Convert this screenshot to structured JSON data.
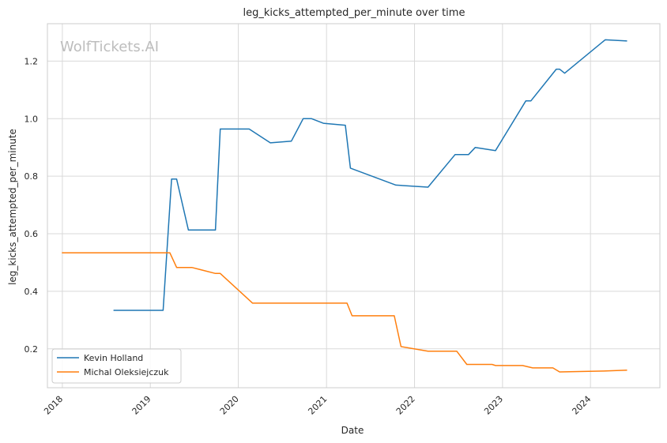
{
  "watermark": "WolfTickets.AI",
  "chart_data": {
    "type": "line",
    "title": "leg_kicks_attempted_per_minute over time",
    "xlabel": "Date",
    "ylabel": "leg_kicks_attempted_per_minute",
    "x_ticks": [
      "2018",
      "2019",
      "2020",
      "2021",
      "2022",
      "2023",
      "2024"
    ],
    "y_ticks": [
      "0.2",
      "0.4",
      "0.6",
      "0.8",
      "1.0",
      "1.2"
    ],
    "xlim": [
      "2017-10-31",
      "2024-10-15"
    ],
    "ylim": [
      0.065,
      1.33
    ],
    "grid": true,
    "legend_position": "lower-left",
    "colors": {
      "Kevin Holland": "#1f77b4",
      "Michal Oleksiejczuk": "#ff7f0e"
    },
    "series": [
      {
        "name": "Kevin Holland",
        "points": [
          [
            "2018-08-01",
            0.334
          ],
          [
            "2019-02-23",
            0.334
          ],
          [
            "2019-03-30",
            0.79
          ],
          [
            "2019-04-20",
            0.79
          ],
          [
            "2019-06-08",
            0.613
          ],
          [
            "2019-09-28",
            0.613
          ],
          [
            "2019-10-18",
            0.964
          ],
          [
            "2020-02-15",
            0.964
          ],
          [
            "2020-05-13",
            0.916
          ],
          [
            "2020-08-08",
            0.922
          ],
          [
            "2020-09-26",
            1.0
          ],
          [
            "2020-10-31",
            1.0
          ],
          [
            "2020-12-19",
            0.984
          ],
          [
            "2021-03-20",
            0.977
          ],
          [
            "2021-04-10",
            0.828
          ],
          [
            "2021-10-16",
            0.769
          ],
          [
            "2022-02-26",
            0.762
          ],
          [
            "2022-06-18",
            0.875
          ],
          [
            "2022-08-13",
            0.875
          ],
          [
            "2022-09-10",
            0.9
          ],
          [
            "2022-12-03",
            0.889
          ],
          [
            "2023-04-08",
            1.062
          ],
          [
            "2023-04-29",
            1.062
          ],
          [
            "2023-08-12",
            1.172
          ],
          [
            "2023-08-26",
            1.172
          ],
          [
            "2023-09-16",
            1.158
          ],
          [
            "2024-03-02",
            1.274
          ],
          [
            "2024-06-01",
            1.27
          ]
        ]
      },
      {
        "name": "Michal Oleksiejczuk",
        "points": [
          [
            "2017-12-30",
            0.534
          ],
          [
            "2019-03-23",
            0.534
          ],
          [
            "2019-04-20",
            0.483
          ],
          [
            "2019-06-22",
            0.483
          ],
          [
            "2019-09-28",
            0.462
          ],
          [
            "2019-10-18",
            0.462
          ],
          [
            "2020-02-29",
            0.359
          ],
          [
            "2021-03-27",
            0.359
          ],
          [
            "2021-04-17",
            0.315
          ],
          [
            "2021-10-09",
            0.315
          ],
          [
            "2021-11-06",
            0.208
          ],
          [
            "2022-02-26",
            0.192
          ],
          [
            "2022-06-25",
            0.192
          ],
          [
            "2022-08-06",
            0.146
          ],
          [
            "2022-11-19",
            0.146
          ],
          [
            "2022-12-03",
            0.142
          ],
          [
            "2023-03-25",
            0.142
          ],
          [
            "2023-05-06",
            0.134
          ],
          [
            "2023-07-29",
            0.134
          ],
          [
            "2023-08-26",
            0.12
          ],
          [
            "2024-02-24",
            0.123
          ],
          [
            "2024-06-01",
            0.126
          ]
        ]
      }
    ]
  }
}
